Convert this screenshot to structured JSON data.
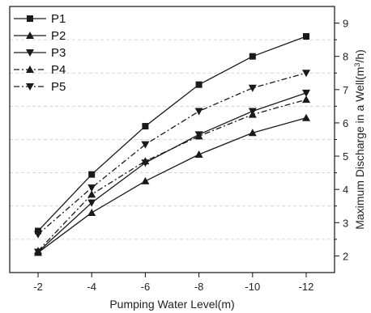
{
  "chart_data": {
    "type": "line",
    "x": [
      -2,
      -4,
      -6,
      -8,
      -10,
      -12
    ],
    "x_ticks": [
      "-2",
      "-4",
      "-6",
      "-8",
      "-10",
      "-12"
    ],
    "xlabel": "Pumping Water Level(m)",
    "ylabel_main": "Maximum Discharge in a Well(m",
    "ylabel_sup": "3",
    "ylabel_tail": "/h)",
    "y_ticks": [
      "2",
      "3",
      "4",
      "5",
      "6",
      "7",
      "8",
      "9"
    ],
    "ylim": [
      1.5,
      9.5
    ],
    "grid": "dashed horizontal at half-units",
    "legend_placement": "top-left",
    "series": [
      {
        "name": "P1",
        "values": [
          2.75,
          4.45,
          5.9,
          7.15,
          8.0,
          8.6
        ],
        "marker": "square",
        "dash": "solid",
        "color": "#1a1a1a"
      },
      {
        "name": "P2",
        "values": [
          2.1,
          3.3,
          4.25,
          5.05,
          5.7,
          6.15
        ],
        "marker": "triangle-up",
        "dash": "solid",
        "color": "#1a1a1a"
      },
      {
        "name": "P3",
        "values": [
          2.12,
          3.6,
          4.8,
          5.65,
          6.35,
          6.9
        ],
        "marker": "triangle-down",
        "dash": "solid",
        "color": "#1a1a1a"
      },
      {
        "name": "P4",
        "values": [
          2.15,
          3.85,
          4.85,
          5.6,
          6.25,
          6.7
        ],
        "marker": "triangle-up",
        "dash": "dashdot",
        "color": "#1a1a1a"
      },
      {
        "name": "P5",
        "values": [
          2.65,
          4.05,
          5.35,
          6.35,
          7.05,
          7.5
        ],
        "marker": "triangle-down",
        "dash": "dashdot",
        "color": "#1a1a1a"
      }
    ]
  }
}
